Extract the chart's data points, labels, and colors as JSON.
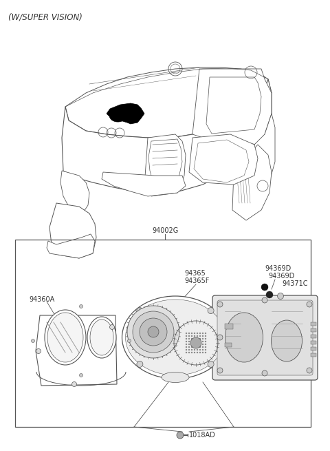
{
  "title": "(W/SUPER VISION)",
  "bg_color": "#ffffff",
  "line_color": "#555555",
  "text_color": "#333333",
  "part_label_94002G": "94002G",
  "part_label_94360A": "94360A",
  "part_label_94365": "94365",
  "part_label_94365F": "94365F",
  "part_label_94369D_1": "94369D",
  "part_label_94369D_2": "94369D",
  "part_label_94371C": "94371C",
  "part_label_1018AD": "1018AD",
  "font_size_title": 8.5,
  "font_size_parts": 6.5,
  "font_size_main_label": 7.0,
  "dash_top_x": [
    80,
    130,
    170,
    200,
    265,
    320,
    370,
    400,
    415,
    405,
    385,
    340,
    290,
    240,
    200,
    165,
    130,
    95,
    80
  ],
  "dash_top_y": [
    195,
    175,
    168,
    162,
    153,
    145,
    140,
    138,
    145,
    165,
    185,
    210,
    225,
    235,
    240,
    240,
    240,
    238,
    195
  ]
}
